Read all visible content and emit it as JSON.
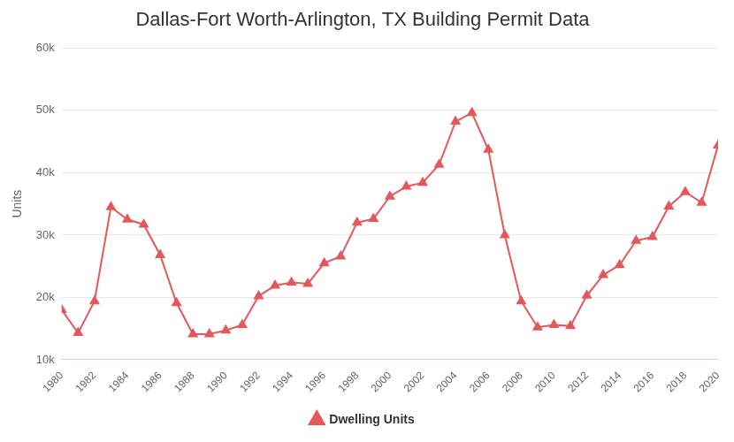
{
  "chart_data": {
    "type": "line",
    "title": "Dallas-Fort Worth-Arlington, TX Building Permit Data",
    "y_label": "Units",
    "x": [
      1980,
      1981,
      1982,
      1983,
      1984,
      1985,
      1986,
      1987,
      1988,
      1989,
      1990,
      1991,
      1992,
      1993,
      1994,
      1995,
      1996,
      1997,
      1998,
      1999,
      2000,
      2001,
      2002,
      2003,
      2004,
      2005,
      2006,
      2007,
      2008,
      2009,
      2010,
      2011,
      2012,
      2013,
      2014,
      2015,
      2016,
      2017,
      2018,
      2019,
      2020
    ],
    "series": [
      {
        "name": "Dwelling Units",
        "color": "#e4575b",
        "marker": "triangle",
        "values": [
          18000,
          14300,
          19400,
          34500,
          32500,
          31700,
          26800,
          19100,
          14100,
          14100,
          14700,
          15600,
          20200,
          21900,
          22400,
          22200,
          25500,
          26600,
          32000,
          32600,
          36200,
          37800,
          38400,
          41300,
          48200,
          49600,
          43700,
          30000,
          19400,
          15200,
          15600,
          15400,
          20300,
          23600,
          25200,
          29100,
          29700,
          34600,
          36900,
          35200,
          44400
        ]
      }
    ],
    "xlim": [
      1980,
      2020
    ],
    "xticks": [
      1980,
      1982,
      1984,
      1986,
      1988,
      1990,
      1992,
      1994,
      1996,
      1998,
      2000,
      2002,
      2004,
      2006,
      2008,
      2010,
      2012,
      2014,
      2016,
      2018,
      2020
    ],
    "ylim": [
      10000,
      60000
    ],
    "yticks": [
      {
        "value": 10000,
        "label": "10k"
      },
      {
        "value": 20000,
        "label": "20k"
      },
      {
        "value": 30000,
        "label": "30k"
      },
      {
        "value": 40000,
        "label": "40k"
      },
      {
        "value": 50000,
        "label": "50k"
      },
      {
        "value": 60000,
        "label": "60k"
      }
    ],
    "grid": true,
    "legend": "bottom"
  }
}
